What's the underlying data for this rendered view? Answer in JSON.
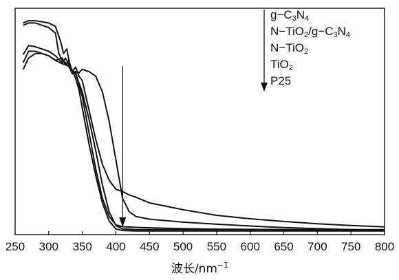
{
  "chart_data": {
    "type": "line",
    "xlabel": "波长/nm",
    "xlabel_superscript": "−1",
    "xlim": [
      250,
      800
    ],
    "xticks": [
      "250",
      "300",
      "350",
      "400",
      "450",
      "500",
      "550",
      "600",
      "650",
      "700",
      "750",
      "800"
    ],
    "y_axis_visible": false,
    "grid": false,
    "legend_placement": "top-right",
    "legend_arrow": "down",
    "legend": [
      {
        "parts": [
          [
            "g−C",
            ""
          ],
          [
            "3",
            "sub"
          ],
          [
            "N",
            ""
          ],
          [
            "4",
            "sub"
          ]
        ]
      },
      {
        "parts": [
          [
            "N−TiO",
            ""
          ],
          [
            "2",
            "sub"
          ],
          [
            "/g−C",
            ""
          ],
          [
            "3",
            "sub"
          ],
          [
            "N",
            ""
          ],
          [
            "4",
            "sub"
          ]
        ]
      },
      {
        "parts": [
          [
            "N−TiO",
            ""
          ],
          [
            "2",
            "sub"
          ]
        ]
      },
      {
        "parts": [
          [
            "TiO",
            ""
          ],
          [
            "2",
            "sub"
          ]
        ]
      },
      {
        "parts": [
          [
            "P25",
            ""
          ]
        ]
      }
    ],
    "annotation_arrow_x": 410,
    "series": [
      {
        "x": [
          262,
          270,
          280,
          290,
          300,
          310,
          315,
          320,
          325,
          330,
          335,
          340,
          345,
          350,
          355,
          360,
          365,
          370,
          380,
          390,
          400,
          410,
          420,
          430,
          450,
          500,
          550,
          600,
          650,
          700,
          750,
          800
        ],
        "y": [
          0.925,
          0.935,
          0.935,
          0.925,
          0.915,
          0.89,
          0.8,
          0.77,
          0.76,
          0.74,
          0.72,
          0.72,
          0.715,
          0.73,
          0.725,
          0.72,
          0.71,
          0.7,
          0.63,
          0.5,
          0.33,
          0.16,
          0.1,
          0.08,
          0.068,
          0.055,
          0.046,
          0.038,
          0.031,
          0.026,
          0.022,
          0.018
        ]
      },
      {
        "x": [
          262,
          270,
          280,
          290,
          300,
          310,
          320,
          325,
          330,
          335,
          340,
          345,
          350,
          360,
          370,
          380,
          390,
          400,
          410,
          420,
          430,
          450,
          500,
          550,
          600,
          650,
          700,
          750,
          800
        ],
        "y": [
          0.73,
          0.78,
          0.8,
          0.8,
          0.79,
          0.77,
          0.78,
          0.75,
          0.77,
          0.72,
          0.74,
          0.7,
          0.68,
          0.55,
          0.42,
          0.31,
          0.24,
          0.2,
          0.19,
          0.175,
          0.165,
          0.14,
          0.11,
          0.085,
          0.07,
          0.058,
          0.048,
          0.04,
          0.034
        ]
      },
      {
        "x": [
          262,
          270,
          280,
          290,
          300,
          310,
          318,
          322,
          327,
          332,
          336,
          340,
          345,
          350,
          360,
          370,
          380,
          390,
          400,
          410,
          430,
          450,
          500,
          550,
          600,
          650,
          700,
          750,
          800
        ],
        "y": [
          0.935,
          0.945,
          0.945,
          0.94,
          0.935,
          0.92,
          0.85,
          0.8,
          0.82,
          0.74,
          0.72,
          0.69,
          0.64,
          0.56,
          0.4,
          0.26,
          0.14,
          0.06,
          0.025,
          0.018,
          0.016,
          0.016,
          0.016,
          0.016,
          0.016,
          0.016,
          0.016,
          0.016,
          0.016
        ]
      },
      {
        "x": [
          262,
          270,
          280,
          290,
          300,
          310,
          320,
          325,
          330,
          335,
          340,
          345,
          350,
          360,
          370,
          380,
          390,
          400,
          410,
          430,
          450,
          500,
          550,
          600,
          650,
          700,
          750,
          800
        ],
        "y": [
          0.795,
          0.835,
          0.83,
          0.82,
          0.81,
          0.79,
          0.76,
          0.78,
          0.75,
          0.71,
          0.72,
          0.66,
          0.61,
          0.45,
          0.29,
          0.16,
          0.08,
          0.043,
          0.035,
          0.032,
          0.03,
          0.026,
          0.024,
          0.023,
          0.022,
          0.021,
          0.02,
          0.02
        ]
      },
      {
        "x": [
          262,
          270,
          280,
          290,
          300,
          310,
          320,
          330,
          340,
          350,
          360,
          370,
          380,
          390,
          400,
          410,
          430,
          450,
          500,
          550,
          600,
          650,
          700,
          750,
          800
        ],
        "y": [
          0.76,
          0.81,
          0.81,
          0.8,
          0.79,
          0.77,
          0.755,
          0.745,
          0.71,
          0.63,
          0.51,
          0.37,
          0.22,
          0.1,
          0.04,
          0.025,
          0.022,
          0.022,
          0.022,
          0.022,
          0.022,
          0.022,
          0.022,
          0.022,
          0.022
        ]
      }
    ]
  }
}
